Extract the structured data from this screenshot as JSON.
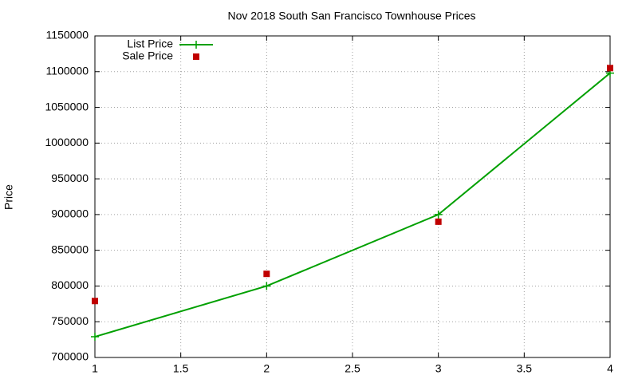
{
  "chart_data": {
    "type": "line",
    "title": "Nov 2018 South San Francisco Townhouse Prices",
    "y_label": "Price",
    "x": [
      1,
      2,
      3,
      4
    ],
    "series": [
      {
        "name": "List Price",
        "color": "#00a000",
        "mode": "lines+markers",
        "values": [
          729000,
          800000,
          900000,
          1098000
        ]
      },
      {
        "name": "Sale Price",
        "color": "#c00000",
        "mode": "markers",
        "values": [
          779000,
          817000,
          890000,
          1105000
        ]
      }
    ],
    "xlim": [
      1,
      4
    ],
    "xticks": [
      1,
      1.5,
      2,
      2.5,
      3,
      3.5,
      4
    ],
    "ylim": [
      700000,
      1150000
    ],
    "yticks": [
      700000,
      750000,
      800000,
      850000,
      900000,
      950000,
      1000000,
      1050000,
      1100000,
      1150000
    ],
    "grid": true,
    "legend": "top-left"
  }
}
